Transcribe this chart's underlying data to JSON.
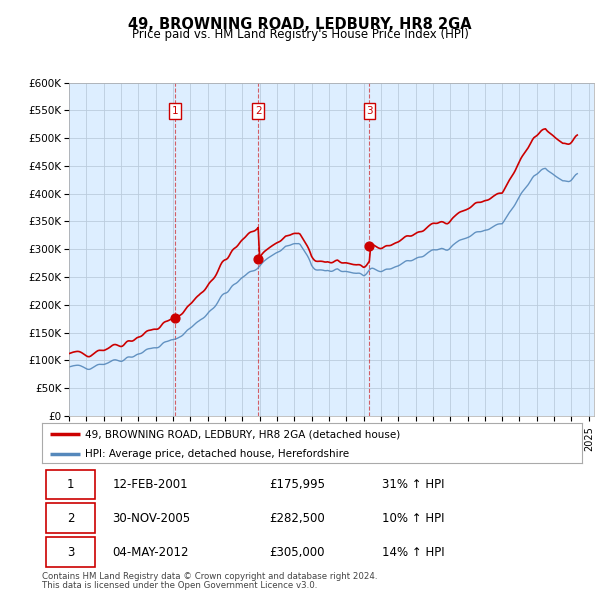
{
  "title": "49, BROWNING ROAD, LEDBURY, HR8 2GA",
  "subtitle": "Price paid vs. HM Land Registry's House Price Index (HPI)",
  "background_color": "#ffffff",
  "chart_bg_color": "#ddeeff",
  "grid_color": "#bbccdd",
  "sale_color": "#cc0000",
  "hpi_color": "#5588bb",
  "vline_color": "#cc0000",
  "legend_label_sale": "49, BROWNING ROAD, LEDBURY, HR8 2GA (detached house)",
  "legend_label_hpi": "HPI: Average price, detached house, Herefordshire",
  "transactions": [
    {
      "num": 1,
      "date": "12-FEB-2001",
      "price": 175995,
      "pct": "31%",
      "direction": "↑",
      "x_year": 2001.12
    },
    {
      "num": 2,
      "date": "30-NOV-2005",
      "price": 282500,
      "pct": "10%",
      "direction": "↑",
      "x_year": 2005.92
    },
    {
      "num": 3,
      "date": "04-MAY-2012",
      "price": 305000,
      "pct": "14%",
      "direction": "↑",
      "x_year": 2012.34
    }
  ],
  "footnote1": "Contains HM Land Registry data © Crown copyright and database right 2024.",
  "footnote2": "This data is licensed under the Open Government Licence v3.0.",
  "sale_years": [
    2001.12,
    2005.92,
    2012.34
  ],
  "sale_prices": [
    175995,
    282500,
    305000
  ],
  "ylim": [
    0,
    600000
  ],
  "yticks": [
    0,
    50000,
    100000,
    150000,
    200000,
    250000,
    300000,
    350000,
    400000,
    450000,
    500000,
    550000,
    600000
  ],
  "xmin": 1995,
  "xmax": 2025.3,
  "xticks": [
    1995,
    1996,
    1997,
    1998,
    1999,
    2000,
    2001,
    2002,
    2003,
    2004,
    2005,
    2006,
    2007,
    2008,
    2009,
    2010,
    2011,
    2012,
    2013,
    2014,
    2015,
    2016,
    2017,
    2018,
    2019,
    2020,
    2021,
    2022,
    2023,
    2024,
    2025
  ]
}
